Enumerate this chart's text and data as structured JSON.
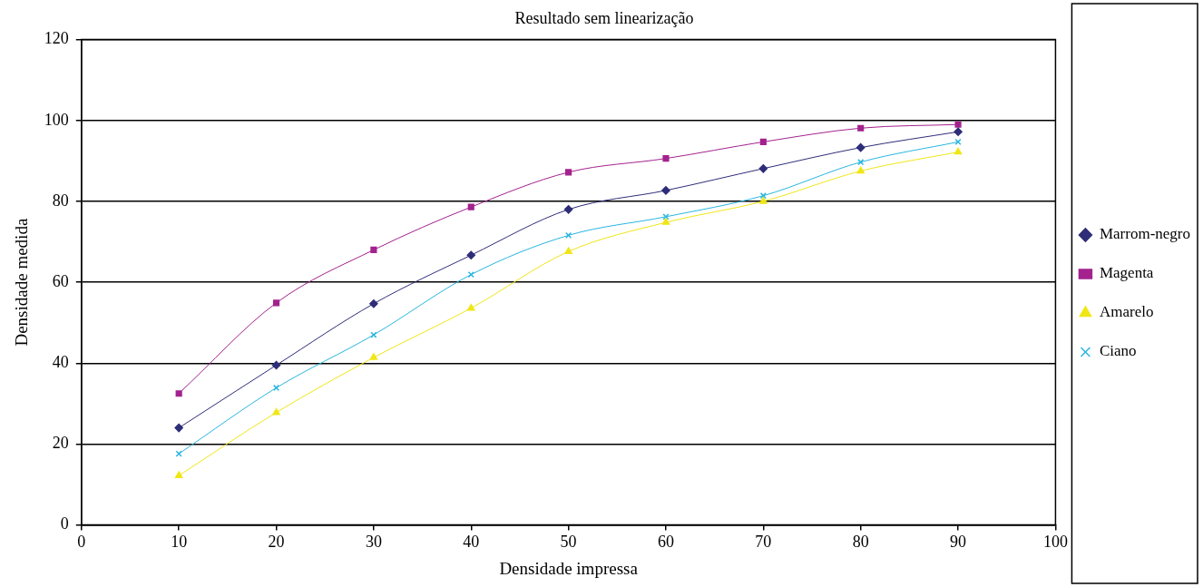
{
  "chart_data": {
    "type": "line",
    "title": "Resultado sem linearização",
    "xlabel": "Densidade impressa",
    "ylabel": "Densidade medida",
    "x": [
      10,
      20,
      30,
      40,
      50,
      60,
      70,
      80,
      90
    ],
    "xlim": [
      0,
      100
    ],
    "xticks": [
      0,
      10,
      20,
      30,
      40,
      50,
      60,
      70,
      80,
      90,
      100
    ],
    "ylim": [
      0,
      120
    ],
    "yticks": [
      0,
      20,
      40,
      60,
      80,
      100,
      120
    ],
    "grid": "y",
    "legend": "right",
    "line_style": "solid",
    "series": [
      {
        "name": "Marrom-negro",
        "color": "#2e2d78",
        "marker": "diamond",
        "values": [
          24,
          39.5,
          54.7,
          66.7,
          78,
          82.7,
          88.1,
          93.3,
          97.2
        ]
      },
      {
        "name": "Magenta",
        "color": "#a3228e",
        "marker": "square",
        "values": [
          32.5,
          54.9,
          68,
          78.6,
          87.2,
          90.6,
          94.7,
          98.1,
          99
        ]
      },
      {
        "name": "Amarelo",
        "color": "#f0e615",
        "marker": "triangle",
        "values": [
          12.2,
          27.8,
          41.4,
          53.6,
          67.6,
          74.8,
          80,
          87.5,
          92.2
        ]
      },
      {
        "name": "Ciano",
        "color": "#29b5e0",
        "marker": "cross",
        "values": [
          17.6,
          33.9,
          47,
          61.9,
          71.6,
          76.2,
          81.4,
          89.7,
          94.7
        ]
      }
    ]
  }
}
